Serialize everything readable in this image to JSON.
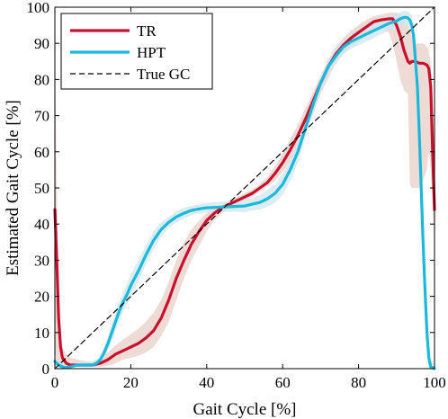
{
  "chart_data": {
    "type": "line",
    "title": "",
    "xlabel": "Gait Cycle [%]",
    "ylabel": "Estimated Gait Cycle [%]",
    "xlim": [
      0,
      100
    ],
    "ylim": [
      0,
      100
    ],
    "xticks": [
      0,
      20,
      40,
      60,
      80,
      100
    ],
    "yticks": [
      0,
      10,
      20,
      30,
      40,
      50,
      60,
      70,
      80,
      90,
      100
    ],
    "grid": false,
    "legend_position": "top-left",
    "series": [
      {
        "name": "TR",
        "color": "#c8102e",
        "band_color": "#e8cfc8",
        "x": [
          0,
          0.5,
          1,
          1.5,
          2,
          3,
          4,
          6,
          8,
          10,
          12,
          14,
          16,
          18,
          20,
          22,
          24,
          26,
          28,
          30,
          32,
          34,
          36,
          38,
          40,
          42,
          44,
          46,
          48,
          50,
          52,
          54,
          56,
          58,
          60,
          62,
          64,
          66,
          68,
          70,
          72,
          74,
          76,
          78,
          80,
          82,
          84,
          86,
          88,
          89,
          90,
          91,
          92,
          93,
          93.5,
          94,
          95,
          96,
          97,
          98,
          98.5,
          99,
          99.5,
          100
        ],
        "y": [
          44,
          30,
          14,
          6,
          3,
          1.5,
          1,
          1,
          1,
          1,
          1.5,
          2.5,
          4,
          5,
          6,
          7,
          8.5,
          10.5,
          14,
          19,
          25,
          30,
          34.5,
          38,
          41,
          43,
          44.5,
          45.5,
          46.5,
          47.5,
          48.5,
          50,
          51.5,
          54,
          57,
          60.5,
          64.5,
          69,
          74,
          79,
          83.5,
          87,
          89.5,
          91.5,
          93,
          94.5,
          96,
          96.5,
          96.8,
          96.8,
          95,
          92,
          88,
          85,
          84.5,
          85,
          85,
          84.5,
          84.5,
          84,
          83,
          78,
          60,
          44
        ],
        "band_upper": [
          85,
          50,
          22,
          10,
          6,
          4,
          3,
          2.5,
          2,
          2,
          3,
          4.5,
          6.5,
          8,
          9.5,
          11,
          13,
          15.5,
          19,
          24,
          30,
          35,
          38.5,
          41,
          43,
          44.5,
          45.5,
          46.5,
          47.5,
          48.5,
          49.5,
          51,
          53,
          56,
          59.5,
          63.5,
          67.5,
          72,
          76.5,
          81,
          85.5,
          89,
          91.5,
          93.5,
          95,
          96.5,
          97.5,
          98,
          98.5,
          98.5,
          98.5,
          98,
          97,
          95,
          94,
          92,
          90,
          90,
          90,
          89,
          88,
          84,
          75,
          60
        ],
        "band_lower": [
          5,
          2,
          0.5,
          0.5,
          0.5,
          0.5,
          0.5,
          0.5,
          0.5,
          0.5,
          0.5,
          0.8,
          1.5,
          2.5,
          3,
          3.5,
          4.5,
          6,
          9,
          13,
          19,
          25,
          30,
          34,
          38,
          41,
          43,
          44.5,
          45.5,
          46.5,
          47.5,
          49,
          50.5,
          52,
          54.5,
          57.5,
          61,
          65.5,
          70.5,
          76,
          80.5,
          84.5,
          87,
          89,
          90.5,
          92,
          93.5,
          94,
          93,
          90,
          85,
          80,
          77,
          76,
          51,
          50,
          50,
          50,
          52,
          55,
          60,
          55,
          45,
          35
        ]
      },
      {
        "name": "HPT",
        "color": "#1cb8d8",
        "band_color": "#cfe6ee",
        "x": [
          0,
          1,
          2,
          3,
          4,
          6,
          8,
          10,
          11,
          12,
          13,
          14,
          15,
          16,
          17,
          18,
          19,
          20,
          22,
          24,
          26,
          28,
          30,
          32,
          34,
          36,
          38,
          40,
          42,
          44,
          46,
          48,
          50,
          52,
          54,
          56,
          58,
          60,
          62,
          64,
          66,
          68,
          70,
          72,
          74,
          76,
          78,
          80,
          82,
          84,
          86,
          88,
          90,
          91,
          92,
          92.5,
          93,
          93.5,
          94,
          94.5,
          95,
          95.5,
          96,
          96.5,
          97,
          97.5,
          98,
          98.5,
          99,
          100
        ],
        "y": [
          2,
          1,
          0.5,
          0.3,
          0.5,
          1,
          1,
          1,
          1.5,
          2.5,
          4.5,
          7,
          10,
          13,
          16,
          18.5,
          20.5,
          23,
          27,
          31.5,
          35.5,
          38.5,
          40.5,
          42,
          43,
          43.8,
          44.2,
          44.5,
          44.6,
          44.7,
          44.8,
          44.9,
          45,
          45.5,
          46,
          47,
          48.5,
          51,
          55,
          60,
          66.5,
          73,
          79,
          83.5,
          86.5,
          89,
          90.5,
          91.5,
          92.5,
          93.5,
          94.5,
          95.5,
          96.2,
          96.8,
          97.2,
          97.2,
          97,
          96.5,
          95,
          92,
          85,
          78,
          65,
          50,
          35,
          22,
          10,
          3,
          0.5,
          0
        ],
        "band_upper": [
          3,
          2,
          1.5,
          1.2,
          1.5,
          2,
          2,
          2,
          2.5,
          3.5,
          6,
          9,
          12.5,
          15.5,
          18.5,
          21,
          23.5,
          26,
          30,
          34,
          38,
          40.5,
          42,
          43.5,
          44.5,
          45,
          45.5,
          45.8,
          46,
          46.2,
          46.3,
          46.5,
          46.8,
          47.2,
          48,
          49.5,
          51,
          54,
          58,
          63,
          69,
          75,
          81,
          85.5,
          88.5,
          91,
          92.5,
          93.5,
          94.5,
          95.5,
          96.5,
          97.5,
          98.2,
          98.6,
          99,
          99,
          98.8,
          98.5,
          97.5,
          95,
          90,
          84,
          72,
          57,
          42,
          29,
          16,
          7,
          2,
          1
        ],
        "band_lower": [
          0.5,
          0.3,
          0.2,
          0.1,
          0.2,
          0.5,
          0.5,
          0.5,
          0.8,
          1.5,
          3,
          5,
          7.5,
          10.5,
          13.5,
          16,
          18,
          20,
          24,
          29,
          33,
          36.5,
          39,
          40.5,
          41.5,
          42.5,
          43,
          43.2,
          43.3,
          43.4,
          43.4,
          43.4,
          43.3,
          43.8,
          44,
          44.8,
          46,
          48,
          52,
          57,
          64,
          71,
          77,
          81.5,
          84.5,
          87,
          88.5,
          89.5,
          90.5,
          91.5,
          92.5,
          93.5,
          94,
          94.5,
          95,
          95.3,
          95,
          94.5,
          92.5,
          89,
          80,
          72,
          58,
          43,
          28,
          15,
          5,
          1,
          0,
          0
        ]
      },
      {
        "name": "True GC",
        "color": "#000000",
        "style": "dashed",
        "x": [
          0,
          100
        ],
        "y": [
          0,
          100
        ]
      }
    ]
  }
}
